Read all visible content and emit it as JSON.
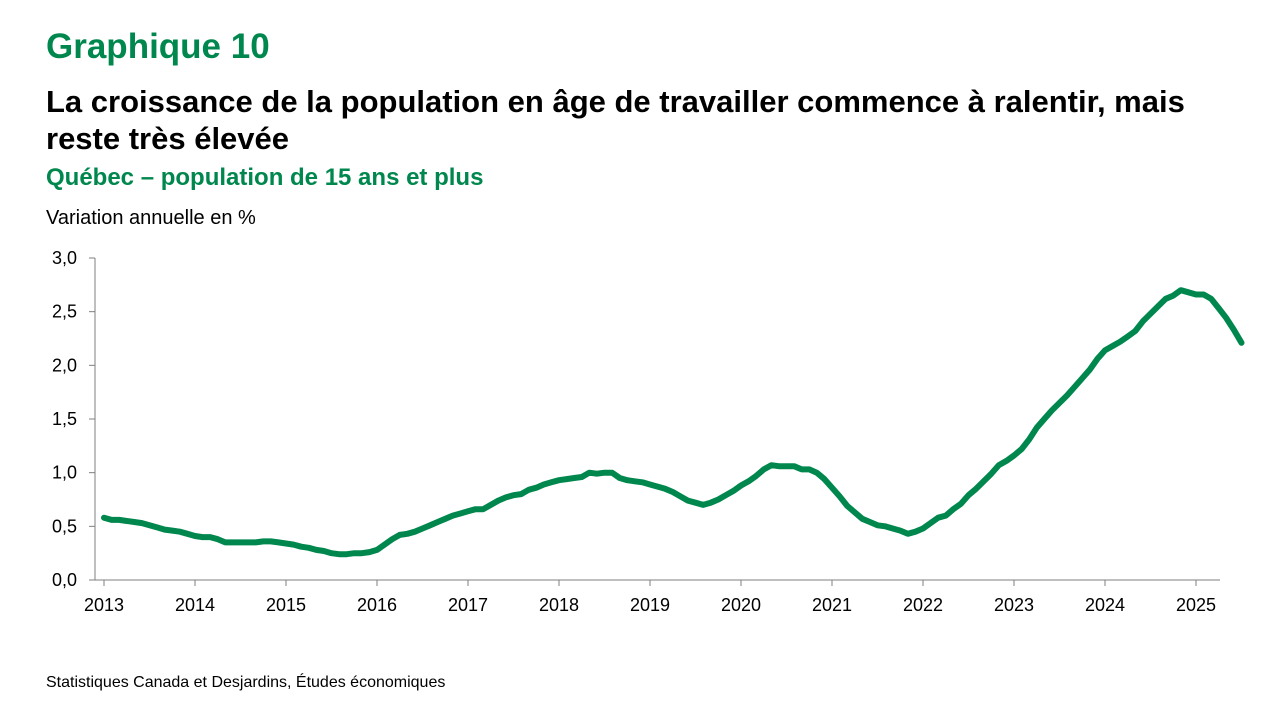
{
  "header": {
    "graph_number": "Graphique 10",
    "title": "La croissance de la population en âge de travailler commence à ralentir, mais reste très élevée",
    "subtitle": "Québec – population de 15 ans et plus"
  },
  "source": "Statistiques Canada et Desjardins, Études économiques",
  "colors": {
    "accent": "#00874E",
    "series": "#00874E"
  },
  "chart_data": {
    "type": "line",
    "title": "La croissance de la population en âge de travailler commence à ralentir, mais reste très élevée",
    "subtitle": "Québec – population de 15 ans et plus",
    "ylabel": "Variation annuelle en %",
    "xlabel": "",
    "grid": false,
    "legend": "none",
    "x_ticks": [
      "2013",
      "2014",
      "2015",
      "2016",
      "2017",
      "2018",
      "2019",
      "2020",
      "2021",
      "2022",
      "2023",
      "2024",
      "2025"
    ],
    "y_ticks": [
      "0,0",
      "0,5",
      "1,0",
      "1,5",
      "2,0",
      "2,5",
      "3,0"
    ],
    "ylim": [
      0,
      3
    ],
    "xlim": [
      "2013-01",
      "2025-05"
    ],
    "series": [
      {
        "name": "",
        "color": "#00874E",
        "points": [
          [
            "2013-01",
            0.58
          ],
          [
            "2013-02",
            0.56
          ],
          [
            "2013-03",
            0.56
          ],
          [
            "2013-04",
            0.55
          ],
          [
            "2013-05",
            0.54
          ],
          [
            "2013-06",
            0.53
          ],
          [
            "2013-07",
            0.51
          ],
          [
            "2013-08",
            0.49
          ],
          [
            "2013-09",
            0.47
          ],
          [
            "2013-10",
            0.46
          ],
          [
            "2013-11",
            0.45
          ],
          [
            "2013-12",
            0.43
          ],
          [
            "2014-01",
            0.41
          ],
          [
            "2014-02",
            0.4
          ],
          [
            "2014-03",
            0.4
          ],
          [
            "2014-04",
            0.38
          ],
          [
            "2014-05",
            0.35
          ],
          [
            "2014-06",
            0.35
          ],
          [
            "2014-07",
            0.35
          ],
          [
            "2014-08",
            0.35
          ],
          [
            "2014-09",
            0.35
          ],
          [
            "2014-10",
            0.36
          ],
          [
            "2014-11",
            0.36
          ],
          [
            "2014-12",
            0.35
          ],
          [
            "2015-01",
            0.34
          ],
          [
            "2015-02",
            0.33
          ],
          [
            "2015-03",
            0.31
          ],
          [
            "2015-04",
            0.3
          ],
          [
            "2015-05",
            0.28
          ],
          [
            "2015-06",
            0.27
          ],
          [
            "2015-07",
            0.25
          ],
          [
            "2015-08",
            0.24
          ],
          [
            "2015-09",
            0.24
          ],
          [
            "2015-10",
            0.25
          ],
          [
            "2015-11",
            0.25
          ],
          [
            "2015-12",
            0.26
          ],
          [
            "2016-01",
            0.28
          ],
          [
            "2016-02",
            0.33
          ],
          [
            "2016-03",
            0.38
          ],
          [
            "2016-04",
            0.42
          ],
          [
            "2016-05",
            0.43
          ],
          [
            "2016-06",
            0.45
          ],
          [
            "2016-07",
            0.48
          ],
          [
            "2016-08",
            0.51
          ],
          [
            "2016-09",
            0.54
          ],
          [
            "2016-10",
            0.57
          ],
          [
            "2016-11",
            0.6
          ],
          [
            "2016-12",
            0.62
          ],
          [
            "2017-01",
            0.64
          ],
          [
            "2017-02",
            0.66
          ],
          [
            "2017-03",
            0.66
          ],
          [
            "2017-04",
            0.7
          ],
          [
            "2017-05",
            0.74
          ],
          [
            "2017-06",
            0.77
          ],
          [
            "2017-07",
            0.79
          ],
          [
            "2017-08",
            0.8
          ],
          [
            "2017-09",
            0.84
          ],
          [
            "2017-10",
            0.86
          ],
          [
            "2017-11",
            0.89
          ],
          [
            "2017-12",
            0.91
          ],
          [
            "2018-01",
            0.93
          ],
          [
            "2018-02",
            0.94
          ],
          [
            "2018-03",
            0.95
          ],
          [
            "2018-04",
            0.96
          ],
          [
            "2018-05",
            1.0
          ],
          [
            "2018-06",
            0.99
          ],
          [
            "2018-07",
            1.0
          ],
          [
            "2018-08",
            1.0
          ],
          [
            "2018-09",
            0.95
          ],
          [
            "2018-10",
            0.93
          ],
          [
            "2018-11",
            0.92
          ],
          [
            "2018-12",
            0.91
          ],
          [
            "2019-01",
            0.89
          ],
          [
            "2019-02",
            0.87
          ],
          [
            "2019-03",
            0.85
          ],
          [
            "2019-04",
            0.82
          ],
          [
            "2019-05",
            0.78
          ],
          [
            "2019-06",
            0.74
          ],
          [
            "2019-07",
            0.72
          ],
          [
            "2019-08",
            0.7
          ],
          [
            "2019-09",
            0.72
          ],
          [
            "2019-10",
            0.75
          ],
          [
            "2019-11",
            0.79
          ],
          [
            "2019-12",
            0.83
          ],
          [
            "2020-01",
            0.88
          ],
          [
            "2020-02",
            0.92
          ],
          [
            "2020-03",
            0.97
          ],
          [
            "2020-04",
            1.03
          ],
          [
            "2020-05",
            1.07
          ],
          [
            "2020-06",
            1.06
          ],
          [
            "2020-07",
            1.06
          ],
          [
            "2020-08",
            1.06
          ],
          [
            "2020-09",
            1.03
          ],
          [
            "2020-10",
            1.03
          ],
          [
            "2020-11",
            1.0
          ],
          [
            "2020-12",
            0.94
          ],
          [
            "2021-01",
            0.86
          ],
          [
            "2021-02",
            0.78
          ],
          [
            "2021-03",
            0.69
          ],
          [
            "2021-04",
            0.63
          ],
          [
            "2021-05",
            0.57
          ],
          [
            "2021-06",
            0.54
          ],
          [
            "2021-07",
            0.51
          ],
          [
            "2021-08",
            0.5
          ],
          [
            "2021-09",
            0.48
          ],
          [
            "2021-10",
            0.46
          ],
          [
            "2021-11",
            0.43
          ],
          [
            "2021-12",
            0.45
          ],
          [
            "2022-01",
            0.48
          ],
          [
            "2022-02",
            0.53
          ],
          [
            "2022-03",
            0.58
          ],
          [
            "2022-04",
            0.6
          ],
          [
            "2022-05",
            0.66
          ],
          [
            "2022-06",
            0.71
          ],
          [
            "2022-07",
            0.79
          ],
          [
            "2022-08",
            0.85
          ],
          [
            "2022-09",
            0.92
          ],
          [
            "2022-10",
            0.99
          ],
          [
            "2022-11",
            1.07
          ],
          [
            "2022-12",
            1.11
          ],
          [
            "2023-01",
            1.16
          ],
          [
            "2023-02",
            1.22
          ],
          [
            "2023-03",
            1.31
          ],
          [
            "2023-04",
            1.42
          ],
          [
            "2023-05",
            1.5
          ],
          [
            "2023-06",
            1.58
          ],
          [
            "2023-07",
            1.65
          ],
          [
            "2023-08",
            1.72
          ],
          [
            "2023-09",
            1.8
          ],
          [
            "2023-10",
            1.88
          ],
          [
            "2023-11",
            1.96
          ],
          [
            "2023-12",
            2.06
          ],
          [
            "2024-01",
            2.14
          ],
          [
            "2024-02",
            2.18
          ],
          [
            "2024-03",
            2.22
          ],
          [
            "2024-04",
            2.27
          ],
          [
            "2024-05",
            2.32
          ],
          [
            "2024-06",
            2.41
          ],
          [
            "2024-07",
            2.48
          ],
          [
            "2024-08",
            2.55
          ],
          [
            "2024-09",
            2.62
          ],
          [
            "2024-10",
            2.65
          ],
          [
            "2024-11",
            2.7
          ],
          [
            "2024-12",
            2.68
          ],
          [
            "2025-01",
            2.66
          ],
          [
            "2025-02",
            2.66
          ],
          [
            "2025-03",
            2.62
          ],
          [
            "2025-04",
            2.53
          ],
          [
            "2025-05",
            2.44
          ],
          [
            "2025-06",
            2.33
          ],
          [
            "2025-07",
            2.21
          ]
        ]
      }
    ]
  }
}
